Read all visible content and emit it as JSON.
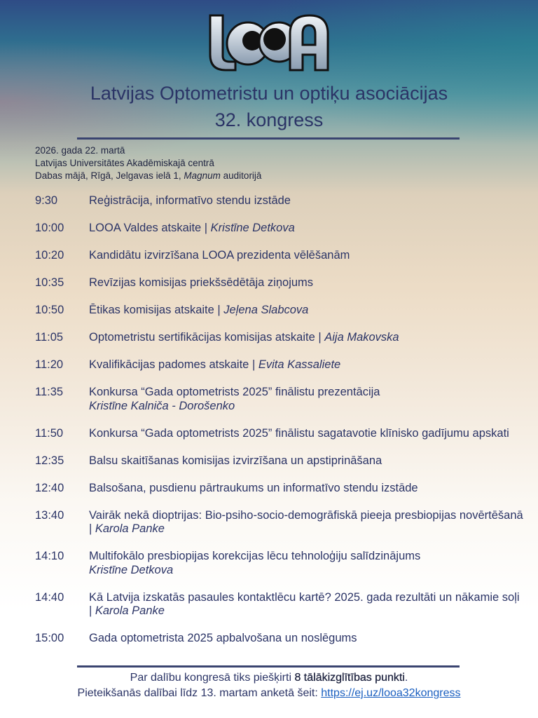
{
  "logo": {
    "text": "LOOA"
  },
  "header": {
    "title_line1": "Latvijas Optometristu un optiķu asociācijas",
    "title_line2": "32. kongress"
  },
  "info": {
    "date": "2026. gada 22. martā",
    "venue1": "Latvijas Universitātes Akadēmiskajā centrā",
    "venue2_pre": "Dabas mājā, Rīgā, Jelgavas ielā 1, ",
    "venue2_italic": "Magnum",
    "venue2_post": " auditorijā"
  },
  "agenda": [
    {
      "time": "9:30",
      "title": "Reģistrācija, informatīvo stendu izstāde",
      "speaker": ""
    },
    {
      "time": "10:00",
      "title": "LOOA Valdes atskaite | ",
      "speaker": "Kristīne Detkova"
    },
    {
      "time": "10:20",
      "title": "Kandidātu izvirzīšana LOOA prezidenta vēlēšanām",
      "speaker": ""
    },
    {
      "time": "10:35",
      "title": "Revīzijas komisijas priekšsēdētāja ziņojums",
      "speaker": ""
    },
    {
      "time": "10:50",
      "title": "Ētikas komisijas atskaite | ",
      "speaker": "Jeļena Slabcova"
    },
    {
      "time": "11:05",
      "title": "Optometristu sertifikācijas komisijas atskaite | ",
      "speaker": "Aija Makovska"
    },
    {
      "time": "11:20",
      "title": "Kvalifikācijas padomes atskaite | ",
      "speaker": "Evita Kassaliete"
    },
    {
      "time": "11:35",
      "title": "Konkursa “Gada optometrists 2025” finālistu prezentācija",
      "speaker_line": "Kristīne Kalniča - Dorošenko"
    },
    {
      "time": "11:50",
      "title": "Konkursa “Gada optometrists 2025” finālistu sagatavotie klīnisko gadījumu apskati",
      "speaker": ""
    },
    {
      "time": "12:35",
      "title": "Balsu skaitīšanas komisijas izvirzīšana un apstiprināšana",
      "speaker": ""
    },
    {
      "time": "12:40",
      "title": "Balsošana, pusdienu pārtraukums un informatīvo stendu izstāde",
      "speaker": ""
    },
    {
      "time": "13:40",
      "title": "Vairāk nekā dioptrijas: Bio-psiho-socio-demogrāfiskā pieeja presbiopijas novērtēšanā  | ",
      "speaker": "Karola Panke"
    },
    {
      "time": "14:10",
      "title": "Multifokālo presbiopijas korekcijas lēcu tehnoloģiju salīdzinājums",
      "speaker_line": "Kristīne Detkova"
    },
    {
      "time": "14:40",
      "title": "Kā Latvija izskatās pasaules kontaktlēcu kartē? 2025. gada rezultāti un nākamie soļi | ",
      "speaker": "Karola Panke"
    },
    {
      "time": "15:00",
      "title": "Gada optometrista 2025 apbalvošana un noslēgums",
      "speaker": ""
    }
  ],
  "footer": {
    "line1_pre": "Par dalību kongresā tiks piešķirti ",
    "line1_bold": "8 tālākizglītības punkti",
    "line1_post": ".",
    "line2_pre": "Pieteikšanās dalībai līdz 13. martam anketā šeit: ",
    "link": "https://ej.uz/looa32kongress"
  }
}
